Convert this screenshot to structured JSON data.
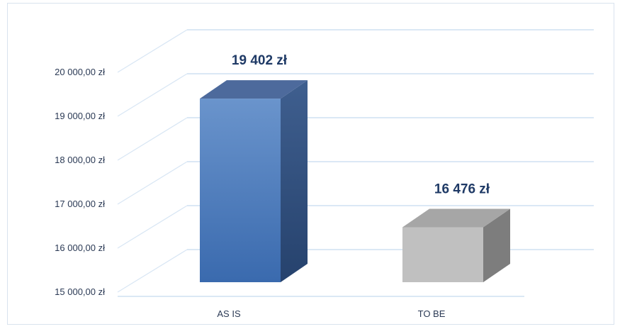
{
  "chart_data": {
    "type": "bar",
    "categories": [
      "AS IS",
      "TO BE"
    ],
    "values": [
      19402,
      16476
    ],
    "data_labels": [
      "19 402 zł",
      "16 476 zł"
    ],
    "y_tick_labels": [
      "15 000,00 zł",
      "16 000,00 zł",
      "17 000,00 zł",
      "18 000,00 zł",
      "19 000,00 zł",
      "20 000,00 zł"
    ],
    "y_ticks": [
      15000,
      16000,
      17000,
      18000,
      19000,
      20000
    ],
    "ylim": [
      15000,
      20000
    ],
    "title": "",
    "xlabel": "",
    "ylabel": "",
    "grid": true,
    "style": "3d-column",
    "colors": {
      "as_is_front_top": "#6a94cc",
      "as_is_front_bottom": "#3a6aae",
      "as_is_top": "#4d6a9c",
      "as_is_side": "#2d4a78",
      "to_be_front": "#c0c0c0",
      "to_be_top": "#a6a6a6",
      "to_be_side": "#7d7d7d",
      "label_color": "#1f3a66",
      "grid": "#cfe0f2"
    }
  }
}
